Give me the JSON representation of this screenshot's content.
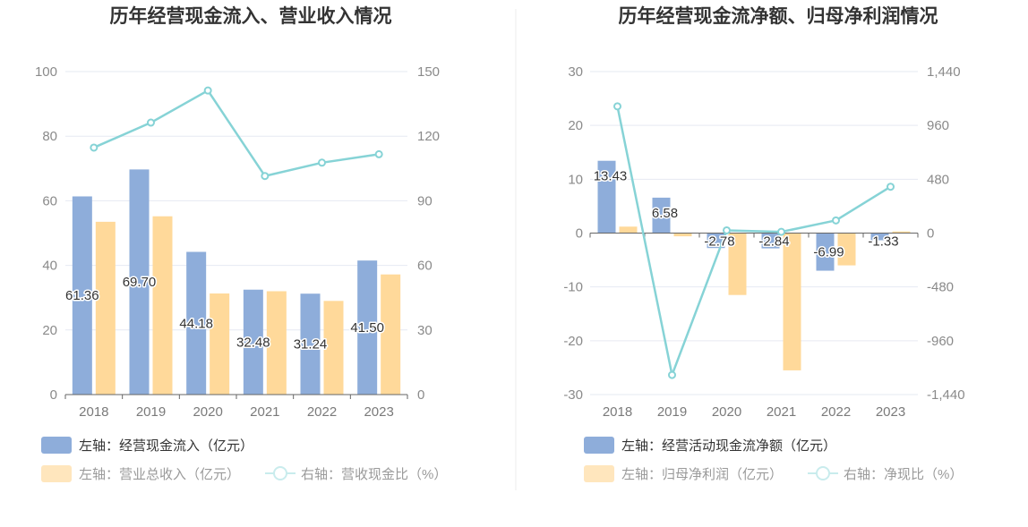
{
  "colors": {
    "bar_primary": "#8eadda",
    "bar_secondary": "#ffd99a",
    "line": "#86d3d6",
    "grid": "#e6e9f2",
    "axis": "#666666",
    "divider": "#eeeeee"
  },
  "chart_data": [
    {
      "type": "bar",
      "title": "历年经营现金流入、营业收入情况",
      "categories": [
        "2018",
        "2019",
        "2020",
        "2021",
        "2022",
        "2023"
      ],
      "left_axis": {
        "min": 0,
        "max": 100,
        "ticks": [
          "0",
          "20",
          "40",
          "60",
          "80",
          "100"
        ]
      },
      "right_axis": {
        "min": 0,
        "max": 150,
        "ticks": [
          "0",
          "30",
          "60",
          "90",
          "120",
          "150"
        ]
      },
      "series": [
        {
          "name": "左轴：经营现金流入（亿元）",
          "axis": "left",
          "kind": "bar",
          "values": [
            61.36,
            69.7,
            44.18,
            32.48,
            31.24,
            41.5
          ],
          "labels": [
            "61.36",
            "69.70",
            "44.18",
            "32.48",
            "31.24",
            "41.50"
          ]
        },
        {
          "name": "左轴：营业总收入（亿元）",
          "axis": "left",
          "kind": "bar",
          "values": [
            53.5,
            55.2,
            31.3,
            32.0,
            29.0,
            37.2
          ]
        },
        {
          "name": "右轴：营收现金比（%）",
          "axis": "right",
          "kind": "line",
          "values": [
            114.7,
            126.3,
            141.2,
            101.5,
            107.7,
            111.6
          ]
        }
      ]
    },
    {
      "type": "bar",
      "title": "历年经营现金流净额、归母净利润情况",
      "categories": [
        "2018",
        "2019",
        "2020",
        "2021",
        "2022",
        "2023"
      ],
      "left_axis": {
        "min": -30,
        "max": 30,
        "ticks": [
          "-30",
          "-20",
          "-10",
          "0",
          "10",
          "20",
          "30"
        ]
      },
      "right_axis": {
        "min": -1440,
        "max": 1440,
        "ticks": [
          "-1,440",
          "-960",
          "-480",
          "0",
          "480",
          "960",
          "1,440"
        ]
      },
      "series": [
        {
          "name": "左轴：经营活动现金流净额（亿元）",
          "axis": "left",
          "kind": "bar",
          "values": [
            13.43,
            6.58,
            -2.78,
            -2.84,
            -6.99,
            -1.33
          ],
          "labels": [
            "13.43",
            "6.58",
            "-2.78",
            "-2.84",
            "-6.99",
            "-1.33"
          ]
        },
        {
          "name": "左轴：归母净利润（亿元）",
          "axis": "left",
          "kind": "bar",
          "values": [
            1.2,
            -0.6,
            -11.5,
            -25.5,
            -6.0,
            0.3
          ]
        },
        {
          "name": "右轴：净现比（%）",
          "axis": "right",
          "kind": "line",
          "values": [
            1130,
            -1265,
            24,
            11,
            113,
            413
          ]
        }
      ]
    }
  ]
}
